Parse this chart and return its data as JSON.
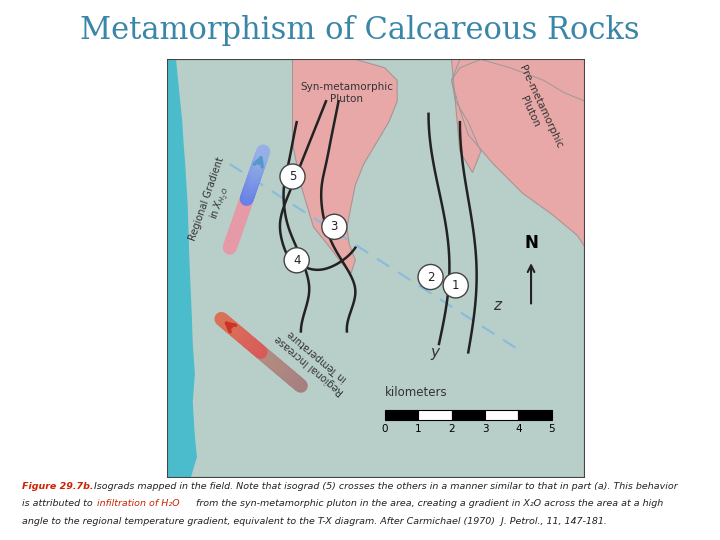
{
  "title": "Metamorphism of Calcareous Rocks",
  "title_color": "#3a86a8",
  "title_fontsize": 22,
  "map_bg": "#b8cec8",
  "pluton_color": "#e8a8a8",
  "water_color": "#4bbccc",
  "isograd_color": "#222222",
  "dashed_color": "#88bbdd",
  "circle_bg": "#ffffff",
  "north_label": "N",
  "z_label": "z",
  "y_label": "y",
  "km_label": "kilometers",
  "syn_label": "Syn-metamorphic\nPluton",
  "pre_label": "Pre-metamorphic\nPluton",
  "grad_xh2o_label": "Regional Gradient\nin X",
  "grad_temp_label": "Regional Increase\nin Temperature",
  "fig_label_red": "Figure 29.7b.",
  "fig_label_black1": " Isograds mapped in the field. Note that isograd (5) crosses the others in a manner similar to that in part (a). This behavior",
  "fig_label_red2": "infiltration of H₂O",
  "fig_label_black2": "is attributed to ",
  "fig_label_black3": " from the syn-metamorphic pluton in the area, creating a gradient in X",
  "fig_label_black4": " across the area at a high",
  "fig_label_black5": "angle to the regional temperature gradient, equivalent to the T-X diagram. After Carmichael (1970)  J. Petrol., 11, 147-181."
}
